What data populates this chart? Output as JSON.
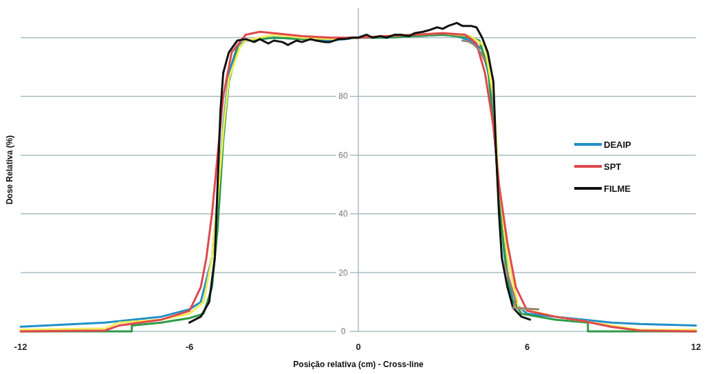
{
  "chart_data": {
    "type": "line",
    "xlabel": "Posição relativa (cm) - Cross-line",
    "ylabel": "Dose Relativa (%)",
    "xlim": [
      -12,
      12
    ],
    "xticks": [
      -12,
      -6,
      0,
      6,
      12
    ],
    "ylim": [
      0,
      110
    ],
    "yticks": [
      0,
      20,
      40,
      60,
      80,
      {
        "value": 100,
        "label": null
      }
    ],
    "grid": "y",
    "legend": "right",
    "marker": "none",
    "line_style": "solid",
    "series": [
      {
        "name": "DEAIP",
        "color": "#1f8fc8",
        "x": [
          -12,
          -9,
          -7,
          -6,
          -5.6,
          -5.2,
          -5,
          -4.8,
          -4.6,
          -4.3,
          -4,
          -3,
          -2,
          -1,
          0,
          1,
          2,
          3,
          3.5,
          4,
          4.4,
          4.7,
          4.9,
          5,
          5.2,
          5.5,
          6,
          7,
          8,
          9,
          10,
          12
        ],
        "values": [
          1.6,
          3,
          5,
          7.5,
          10,
          25,
          45,
          70,
          88,
          97,
          99,
          100,
          99.5,
          99,
          100,
          100,
          100.5,
          101,
          100.5,
          99,
          96,
          85,
          60,
          45,
          25,
          10,
          6,
          5,
          4,
          3,
          2.5,
          2
        ]
      },
      {
        "color": "#2e9a4a",
        "x": [
          -12,
          -8.05,
          -8.05,
          -7,
          -6,
          -5.5,
          -5.2,
          -5,
          -4.8,
          -4.6,
          -4.3,
          -4,
          -3,
          -2,
          -1,
          0,
          1,
          2,
          3,
          4,
          4.3,
          4.6,
          4.9,
          5.1,
          5.4,
          5.8,
          7,
          8.16,
          8.16,
          12
        ],
        "values": [
          0,
          0,
          2,
          3,
          4.5,
          6,
          15,
          35,
          65,
          85,
          96,
          99,
          100,
          99.5,
          99.5,
          100,
          100,
          100.5,
          101,
          100,
          99,
          90,
          60,
          35,
          12,
          6,
          4,
          3,
          0,
          0
        ]
      },
      {
        "color": "#f2ec55",
        "x": [
          -12,
          -9,
          -8.5,
          -7,
          -6,
          -5.5,
          -5.2,
          -5,
          -4.8,
          -4.6,
          -4.2,
          -4,
          -3,
          -2,
          -1,
          0,
          1,
          2,
          3,
          4,
          4.5,
          4.8,
          5,
          5.3,
          5.7,
          7,
          9,
          10,
          12
        ],
        "values": [
          0.5,
          1,
          3,
          4,
          6,
          10,
          25,
          45,
          68,
          86,
          97,
          99,
          101,
          100,
          99.5,
          100,
          100.5,
          101,
          101.5,
          100.5,
          97,
          80,
          50,
          25,
          8,
          5,
          2,
          0.5,
          0.5
        ]
      },
      {
        "name": "SPT",
        "color": "#e0474c",
        "x": [
          -12,
          -9,
          -8.5,
          -7,
          -6,
          -5.6,
          -5.4,
          -5.2,
          -5,
          -4.8,
          -4.5,
          -4,
          -3.5,
          -3,
          -2,
          -1,
          0,
          1,
          2,
          3,
          3.8,
          4.2,
          4.5,
          4.8,
          5,
          5.3,
          5.6,
          6,
          7,
          8,
          9,
          10,
          12
        ],
        "values": [
          0,
          0.3,
          2,
          4,
          7,
          15,
          25,
          40,
          60,
          80,
          95,
          101,
          102,
          101.5,
          100.5,
          100,
          100,
          100.5,
          101,
          101.5,
          101,
          98,
          88,
          70,
          50,
          30,
          15,
          7,
          5,
          3.5,
          1.5,
          0.3,
          0
        ]
      },
      {
        "name": "FILME",
        "color": "#111111",
        "x": [
          -6,
          -5.6,
          -5.3,
          -5.1,
          -5,
          -4.9,
          -4.8,
          -4.6,
          -4.3,
          -4,
          -3.7,
          -3.5,
          -3.2,
          -3,
          -2.7,
          -2.5,
          -2.2,
          -2,
          -1.7,
          -1.5,
          -1.2,
          -1,
          -0.7,
          -0.5,
          -0.2,
          0,
          0.3,
          0.5,
          0.8,
          1,
          1.3,
          1.5,
          1.8,
          2,
          2.3,
          2.5,
          2.8,
          3,
          3.2,
          3.5,
          3.7,
          4,
          4.2,
          4.4,
          4.6,
          4.8,
          4.9,
          5,
          5.1,
          5.3,
          5.5,
          5.8,
          6.1
        ],
        "values": [
          3,
          5,
          10,
          25,
          50,
          75,
          88,
          95,
          99,
          99.5,
          98.5,
          99.5,
          98,
          99,
          98.5,
          97.5,
          99,
          98.5,
          99.5,
          99,
          98.5,
          98.5,
          99.5,
          99.5,
          100,
          100,
          101,
          100,
          100.5,
          100,
          101,
          101,
          100.5,
          101.5,
          102,
          102.5,
          103.5,
          103,
          104,
          105,
          104,
          104,
          103.5,
          100,
          95,
          85,
          60,
          40,
          25,
          15,
          8,
          5,
          4
        ]
      }
    ]
  }
}
